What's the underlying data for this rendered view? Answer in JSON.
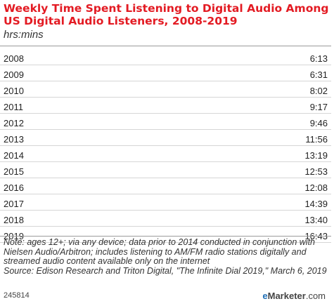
{
  "chart_data": {
    "type": "table",
    "title": "Weekly Time Spent Listening to Digital Audio Among US Digital Audio Listeners, 2008-2019",
    "unit": "hrs:mins",
    "rows": [
      {
        "year": "2008",
        "value": "6:13"
      },
      {
        "year": "2009",
        "value": "6:31"
      },
      {
        "year": "2010",
        "value": "8:02"
      },
      {
        "year": "2011",
        "value": "9:17"
      },
      {
        "year": "2012",
        "value": "9:46"
      },
      {
        "year": "2013",
        "value": "11:56"
      },
      {
        "year": "2014",
        "value": "13:19"
      },
      {
        "year": "2015",
        "value": "12:53"
      },
      {
        "year": "2016",
        "value": "12:08"
      },
      {
        "year": "2017",
        "value": "14:39"
      },
      {
        "year": "2018",
        "value": "13:40"
      },
      {
        "year": "2019",
        "value": "16:43"
      }
    ],
    "note": "Note: ages 12+; via any device; data prior to 2014 conducted in conjunction with Nielsen Audio/Arbitron; includes listening to AM/FM radio stations digitally and streamed audio content available only on the internet",
    "source": "Source: Edison Research and Triton Digital, \"The Infinite Dial 2019,\" March 6, 2019"
  },
  "footer": {
    "chart_id": "245814",
    "brand_prefix": "e",
    "brand_name": "Marketer",
    "brand_suffix": ".com"
  },
  "colors": {
    "title": "#e31b23",
    "brand_accent": "#1f6eb5"
  }
}
